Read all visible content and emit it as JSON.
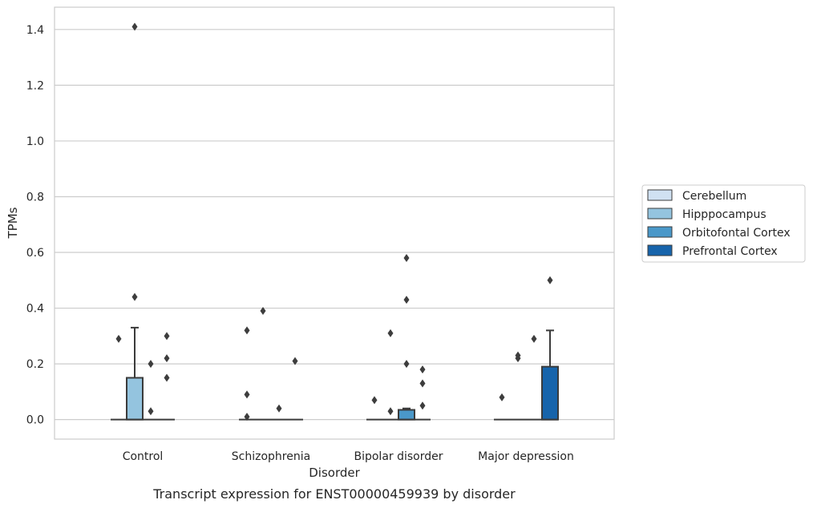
{
  "caption": "Transcript expression for ENST00000459939 by disorder",
  "chart_data": {
    "type": "box",
    "title": "",
    "xlabel": "Disorder",
    "ylabel": "TPMs",
    "ylim": [
      -0.07,
      1.48
    ],
    "yticks": [
      "0.0",
      "0.2",
      "0.4",
      "0.6",
      "0.8",
      "1.0",
      "1.2",
      "1.4"
    ],
    "grid": true,
    "legend_position": "right",
    "categories": [
      "Control",
      "Schizophrenia",
      "Bipolar disorder",
      "Major depression"
    ],
    "series": [
      {
        "name": "Cerebellum",
        "color": "#d0e1f2",
        "boxes": [
          {
            "q1": 0,
            "median": 0,
            "q3": 0,
            "whisker_low": 0,
            "whisker_high": 0,
            "outliers": [
              0.29
            ]
          },
          {
            "q1": 0,
            "median": 0,
            "q3": 0,
            "whisker_low": 0,
            "whisker_high": 0,
            "outliers": [
              0.32,
              0.09,
              0.01
            ]
          },
          {
            "q1": 0,
            "median": 0,
            "q3": 0,
            "whisker_low": 0,
            "whisker_high": 0,
            "outliers": [
              0.07
            ]
          },
          {
            "q1": 0,
            "median": 0,
            "q3": 0,
            "whisker_low": 0,
            "whisker_high": 0,
            "outliers": [
              0.08
            ]
          }
        ]
      },
      {
        "name": "Hipppocampus",
        "color": "#94c4df",
        "boxes": [
          {
            "q1": 0,
            "median": 0,
            "q3": 0.15,
            "whisker_low": 0,
            "whisker_high": 0.33,
            "outliers": [
              1.41,
              0.44
            ]
          },
          {
            "q1": 0,
            "median": 0,
            "q3": 0,
            "whisker_low": 0,
            "whisker_high": 0,
            "outliers": [
              0.39
            ]
          },
          {
            "q1": 0,
            "median": 0,
            "q3": 0,
            "whisker_low": 0,
            "whisker_high": 0,
            "outliers": [
              0.31,
              0.03
            ]
          },
          {
            "q1": 0,
            "median": 0,
            "q3": 0,
            "whisker_low": 0,
            "whisker_high": 0,
            "outliers": [
              0.23,
              0.22
            ]
          }
        ]
      },
      {
        "name": "Orbitofontal Cortex",
        "color": "#4a98c9",
        "boxes": [
          {
            "q1": 0,
            "median": 0,
            "q3": 0,
            "whisker_low": 0,
            "whisker_high": 0,
            "outliers": [
              0.2,
              0.03
            ]
          },
          {
            "q1": 0,
            "median": 0,
            "q3": 0,
            "whisker_low": 0,
            "whisker_high": 0,
            "outliers": [
              0.04
            ]
          },
          {
            "q1": 0,
            "median": 0,
            "q3": 0.035,
            "whisker_low": 0,
            "whisker_high": 0.04,
            "outliers": [
              0.58,
              0.43,
              0.2
            ]
          },
          {
            "q1": 0,
            "median": 0,
            "q3": 0,
            "whisker_low": 0,
            "whisker_high": 0,
            "outliers": [
              0.29
            ]
          }
        ]
      },
      {
        "name": "Prefrontal Cortex",
        "color": "#1764ab",
        "boxes": [
          {
            "q1": 0,
            "median": 0,
            "q3": 0,
            "whisker_low": 0,
            "whisker_high": 0,
            "outliers": [
              0.3,
              0.22,
              0.15
            ]
          },
          {
            "q1": 0,
            "median": 0,
            "q3": 0,
            "whisker_low": 0,
            "whisker_high": 0,
            "outliers": [
              0.21
            ]
          },
          {
            "q1": 0,
            "median": 0,
            "q3": 0,
            "whisker_low": 0,
            "whisker_high": 0,
            "outliers": [
              0.18,
              0.13,
              0.05
            ]
          },
          {
            "q1": 0,
            "median": 0,
            "q3": 0.19,
            "whisker_low": 0,
            "whisker_high": 0.32,
            "outliers": [
              0.5
            ]
          }
        ]
      }
    ]
  }
}
